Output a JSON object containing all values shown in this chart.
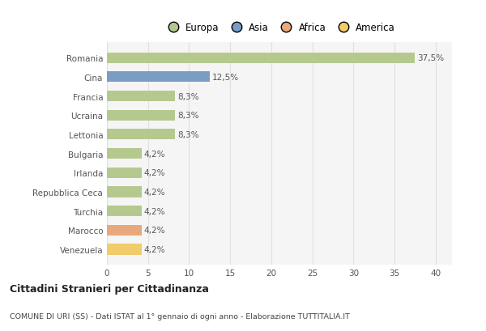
{
  "categories": [
    "Romania",
    "Cina",
    "Francia",
    "Ucraina",
    "Lettonia",
    "Bulgaria",
    "Irlanda",
    "Repubblica Ceca",
    "Turchia",
    "Marocco",
    "Venezuela"
  ],
  "values": [
    37.5,
    12.5,
    8.3,
    8.3,
    8.3,
    4.2,
    4.2,
    4.2,
    4.2,
    4.2,
    4.2
  ],
  "colors": [
    "#b5c98e",
    "#7a9dc5",
    "#b5c98e",
    "#b5c98e",
    "#b5c98e",
    "#b5c98e",
    "#b5c98e",
    "#b5c98e",
    "#b5c98e",
    "#e8a87c",
    "#f0cc6a"
  ],
  "labels": [
    "37,5%",
    "12,5%",
    "8,3%",
    "8,3%",
    "8,3%",
    "4,2%",
    "4,2%",
    "4,2%",
    "4,2%",
    "4,2%",
    "4,2%"
  ],
  "legend_labels": [
    "Europa",
    "Asia",
    "Africa",
    "America"
  ],
  "legend_colors": [
    "#b5c98e",
    "#7a9dc5",
    "#e8a87c",
    "#f0cc6a"
  ],
  "title": "Cittadini Stranieri per Cittadinanza",
  "subtitle": "COMUNE DI URI (SS) - Dati ISTAT al 1° gennaio di ogni anno - Elaborazione TUTTITALIA.IT",
  "xlim": [
    0,
    42
  ],
  "xticks": [
    0,
    5,
    10,
    15,
    20,
    25,
    30,
    35,
    40
  ],
  "background_color": "#ffffff",
  "plot_bg_color": "#f5f5f5",
  "grid_color": "#e0e0e0",
  "bar_height": 0.55,
  "label_fontsize": 7.5,
  "ytick_fontsize": 7.5,
  "xtick_fontsize": 7.5
}
